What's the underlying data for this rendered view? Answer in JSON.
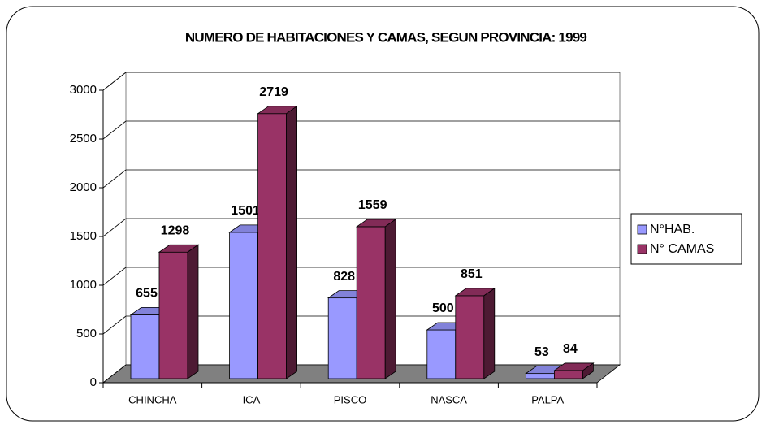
{
  "chart_data": {
    "type": "bar3d",
    "title": "NUMERO DE HABITACIONES Y CAMAS, SEGUN PROVINCIA: 1999",
    "categories": [
      "CHINCHA",
      "ICA",
      "PISCO",
      "NASCA",
      "PALPA"
    ],
    "series": [
      {
        "name": "N°HAB.",
        "color": "#9999ff",
        "values": [
          655,
          1501,
          828,
          500,
          53
        ]
      },
      {
        "name": "N° CAMAS",
        "color": "#993366",
        "values": [
          1298,
          2719,
          1559,
          851,
          84
        ]
      }
    ],
    "ylim": [
      0,
      3000
    ],
    "yticks": [
      0,
      500,
      1000,
      1500,
      2000,
      2500,
      3000
    ],
    "grid": true,
    "legend": "right"
  }
}
